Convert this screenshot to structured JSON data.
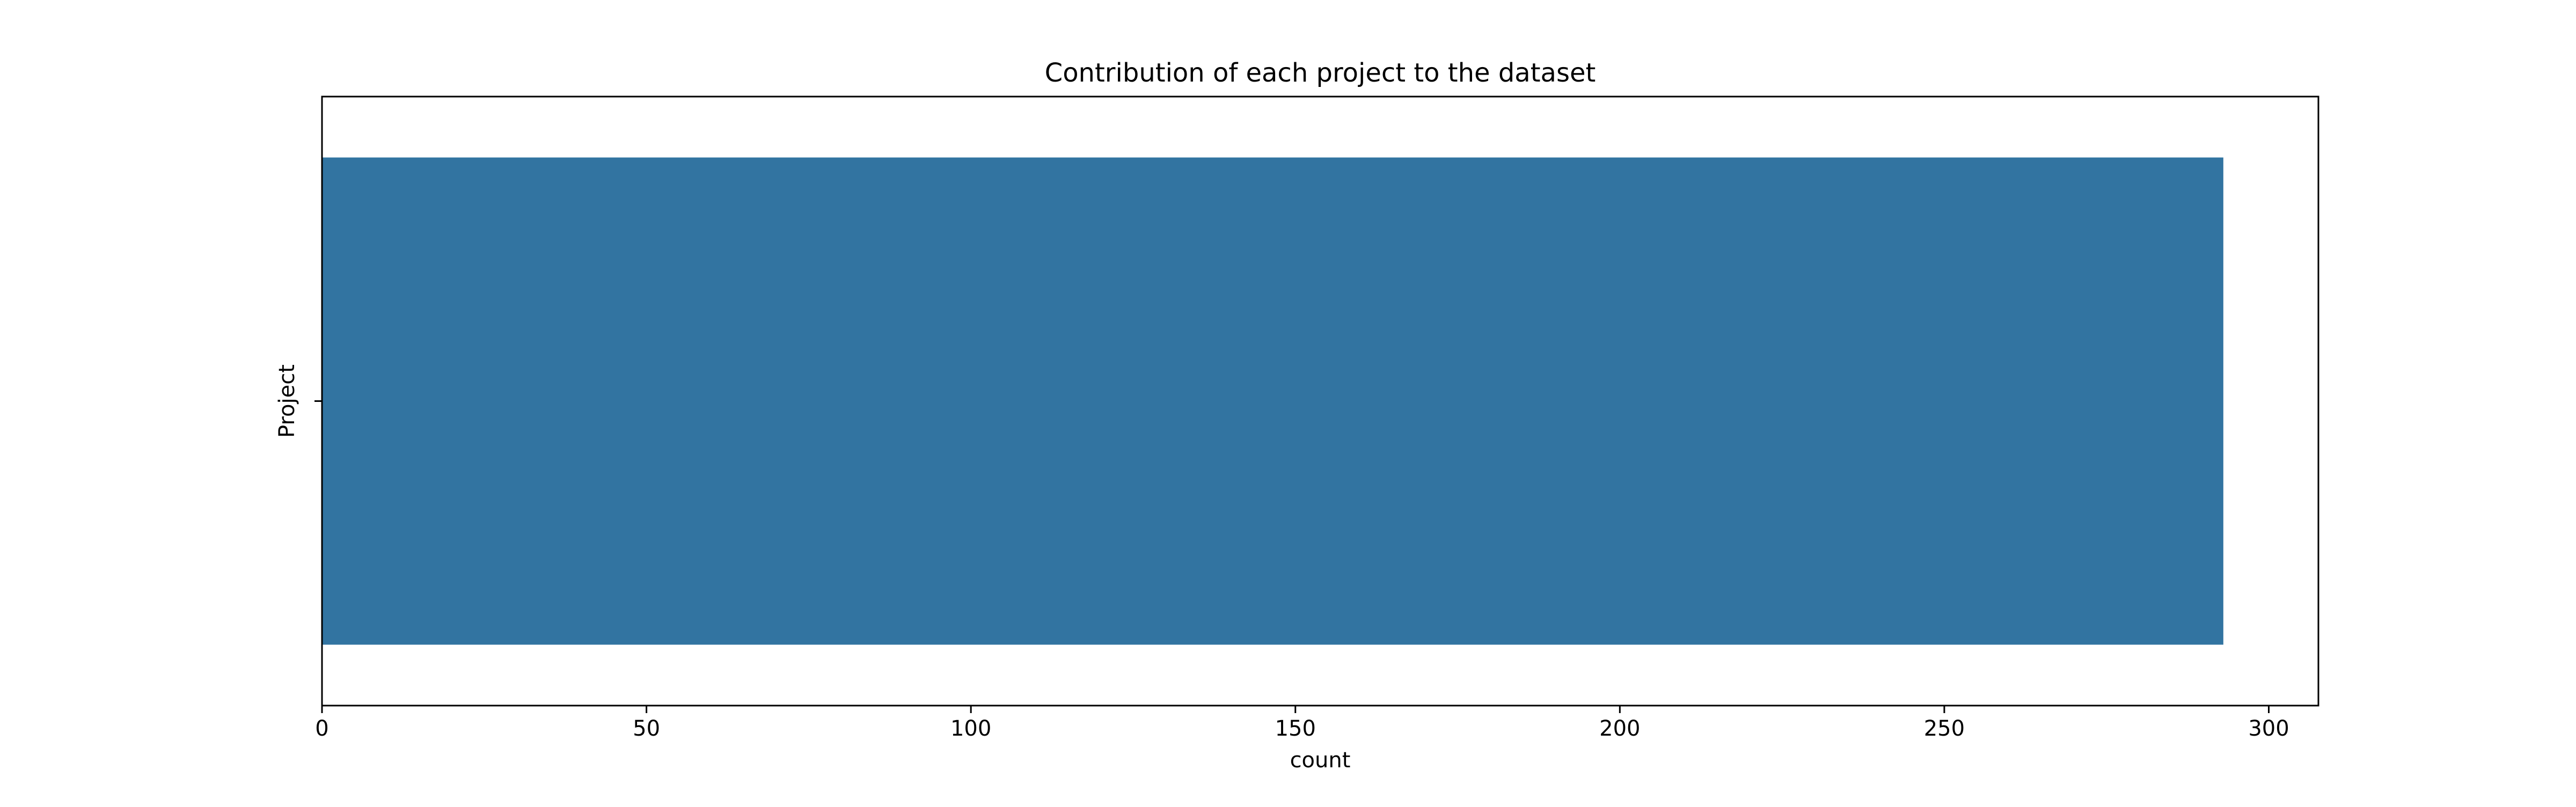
{
  "chart_data": {
    "type": "bar",
    "orientation": "horizontal",
    "title": "Contribution of each project to the dataset",
    "xlabel": "count",
    "ylabel": "Project",
    "categories": [
      ""
    ],
    "values": [
      293
    ],
    "xlim": [
      0,
      307.65
    ],
    "xticks": [
      0,
      50,
      100,
      150,
      200,
      250,
      300
    ],
    "grid": false,
    "legend": "none",
    "colors": {
      "bar": "#3274a1",
      "axes": "#000000",
      "background": "#ffffff"
    }
  }
}
